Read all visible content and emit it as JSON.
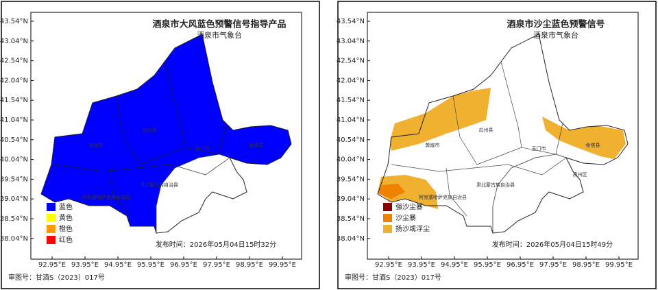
{
  "panels": [
    {
      "title": "酒泉市大风蓝色预警信号指导产品",
      "subtitle": "酒泉市气象台",
      "yticks": [
        "43.54°N",
        "43.04°N",
        "42.54°N",
        "42.04°N",
        "41.54°N",
        "41.04°N",
        "40.54°N",
        "40.04°N",
        "39.54°N",
        "39.04°N",
        "38.54°N",
        "38.04°N"
      ],
      "xticks": [
        "92.95°E",
        "93.95°E",
        "94.95°E",
        "95.95°E",
        "96.95°E",
        "97.95°E",
        "98.95°E",
        "99.95°E"
      ],
      "legend": [
        {
          "label": "蓝色",
          "color": "#0000ff"
        },
        {
          "label": "黄色",
          "color": "#ffff00"
        },
        {
          "label": "橙色",
          "color": "#ff9900"
        },
        {
          "label": "红色",
          "color": "#ff0000"
        }
      ],
      "regions": [
        "敦煌市",
        "瓜州县",
        "玉门市",
        "金塔县",
        "肃北蒙古族自治县",
        "阿克塞哈萨克族自治县"
      ],
      "issued": "发布时间：2026年05月04日15时32分",
      "review": "审图号：甘酒S（2023）017号"
    },
    {
      "title": "酒泉市沙尘蓝色预警信号",
      "subtitle": "酒泉市气象台",
      "yticks": [
        "43.54°N",
        "43.04°N",
        "42.54°N",
        "42.04°N",
        "41.54°N",
        "41.04°N",
        "40.54°N",
        "40.04°N",
        "39.54°N",
        "39.04°N",
        "38.54°N",
        "38.04°N"
      ],
      "xticks": [
        "92.95°E",
        "93.95°E",
        "94.95°E",
        "95.95°E",
        "96.95°E",
        "97.95°E",
        "98.95°E",
        "99.95°E"
      ],
      "legend": [
        {
          "label": "强沙尘暴",
          "color": "#8b0000"
        },
        {
          "label": "沙尘暴",
          "color": "#f08000"
        },
        {
          "label": "扬沙或浮尘",
          "color": "#f0b030"
        }
      ],
      "regions": [
        "敦煌市",
        "瓜州县",
        "玉门市",
        "金塔县",
        "肃北蒙古族自治县",
        "阿克塞哈萨克族自治县",
        "肃州区"
      ],
      "issued": "发布时间：2026年05月04日15时49分",
      "review": "审图号：甘酒S（2023）017号"
    }
  ]
}
